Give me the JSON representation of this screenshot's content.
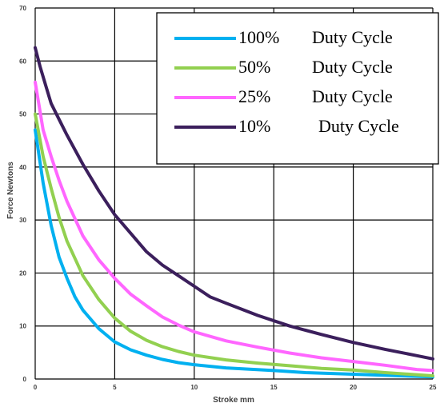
{
  "chart_data": {
    "type": "line",
    "xlabel": "Stroke mm",
    "ylabel": "Force Newtons",
    "xlim": [
      0,
      25
    ],
    "ylim": [
      0,
      70
    ],
    "x_ticks": [
      0,
      5,
      10,
      15,
      20,
      25
    ],
    "y_ticks": [
      0,
      10,
      20,
      30,
      40,
      50,
      60,
      70
    ],
    "grid": true,
    "legend": "top-right",
    "series": [
      {
        "name": "100% Duty Cycle",
        "legend_pct": "100%",
        "legend_text": "Duty Cycle",
        "color": "#00b0f0",
        "x": [
          0,
          0.5,
          1,
          1.5,
          2,
          2.5,
          3,
          4,
          5,
          6,
          7,
          8,
          9,
          10,
          12,
          15,
          17,
          20,
          25
        ],
        "y": [
          47,
          37,
          29,
          23,
          19,
          15.5,
          13,
          9.5,
          7,
          5.5,
          4.5,
          3.7,
          3.1,
          2.7,
          2.1,
          1.6,
          1.2,
          0.9,
          0.4
        ]
      },
      {
        "name": "50% Duty Cycle",
        "legend_pct": "50%",
        "legend_text": "Duty Cycle",
        "color": "#92d050",
        "x": [
          0,
          0.5,
          1,
          1.5,
          2,
          3,
          4,
          5,
          6,
          7,
          8,
          9,
          10,
          12,
          14,
          16,
          18,
          20,
          22,
          25
        ],
        "y": [
          50,
          42,
          36,
          30.5,
          26,
          19.5,
          15,
          11.5,
          9,
          7.3,
          6.1,
          5.2,
          4.5,
          3.6,
          3.0,
          2.5,
          2.0,
          1.7,
          1.2,
          0.6
        ]
      },
      {
        "name": "25% Duty Cycle",
        "legend_pct": "25%",
        "legend_text": "Duty Cycle",
        "color": "#ff66ff",
        "x": [
          0,
          0.5,
          1,
          1.5,
          2,
          3,
          4,
          5,
          6,
          7,
          8,
          9,
          10,
          12,
          14,
          16,
          18,
          20,
          22,
          24,
          25
        ],
        "y": [
          56,
          47,
          42,
          37.5,
          33.5,
          27,
          22.5,
          19,
          16,
          13.8,
          11.7,
          10.2,
          8.9,
          7.2,
          6.0,
          4.9,
          4.0,
          3.3,
          2.6,
          1.8,
          1.6
        ]
      },
      {
        "name": "10% Duty Cycle",
        "legend_pct": "10%",
        "legend_text": "Duty Cycle",
        "color": "#3b1f5c",
        "x": [
          0,
          0.3,
          0.7,
          1,
          1.5,
          2,
          3,
          4,
          5,
          6,
          7,
          8,
          9,
          10,
          11,
          12,
          14,
          16,
          18,
          20,
          22,
          24,
          25
        ],
        "y": [
          62.5,
          59,
          55,
          52,
          49,
          46,
          40.5,
          35.5,
          31,
          27.5,
          24,
          21.5,
          19.5,
          17.5,
          15.5,
          14.3,
          12,
          10,
          8.4,
          6.9,
          5.6,
          4.4,
          3.8
        ]
      }
    ]
  }
}
